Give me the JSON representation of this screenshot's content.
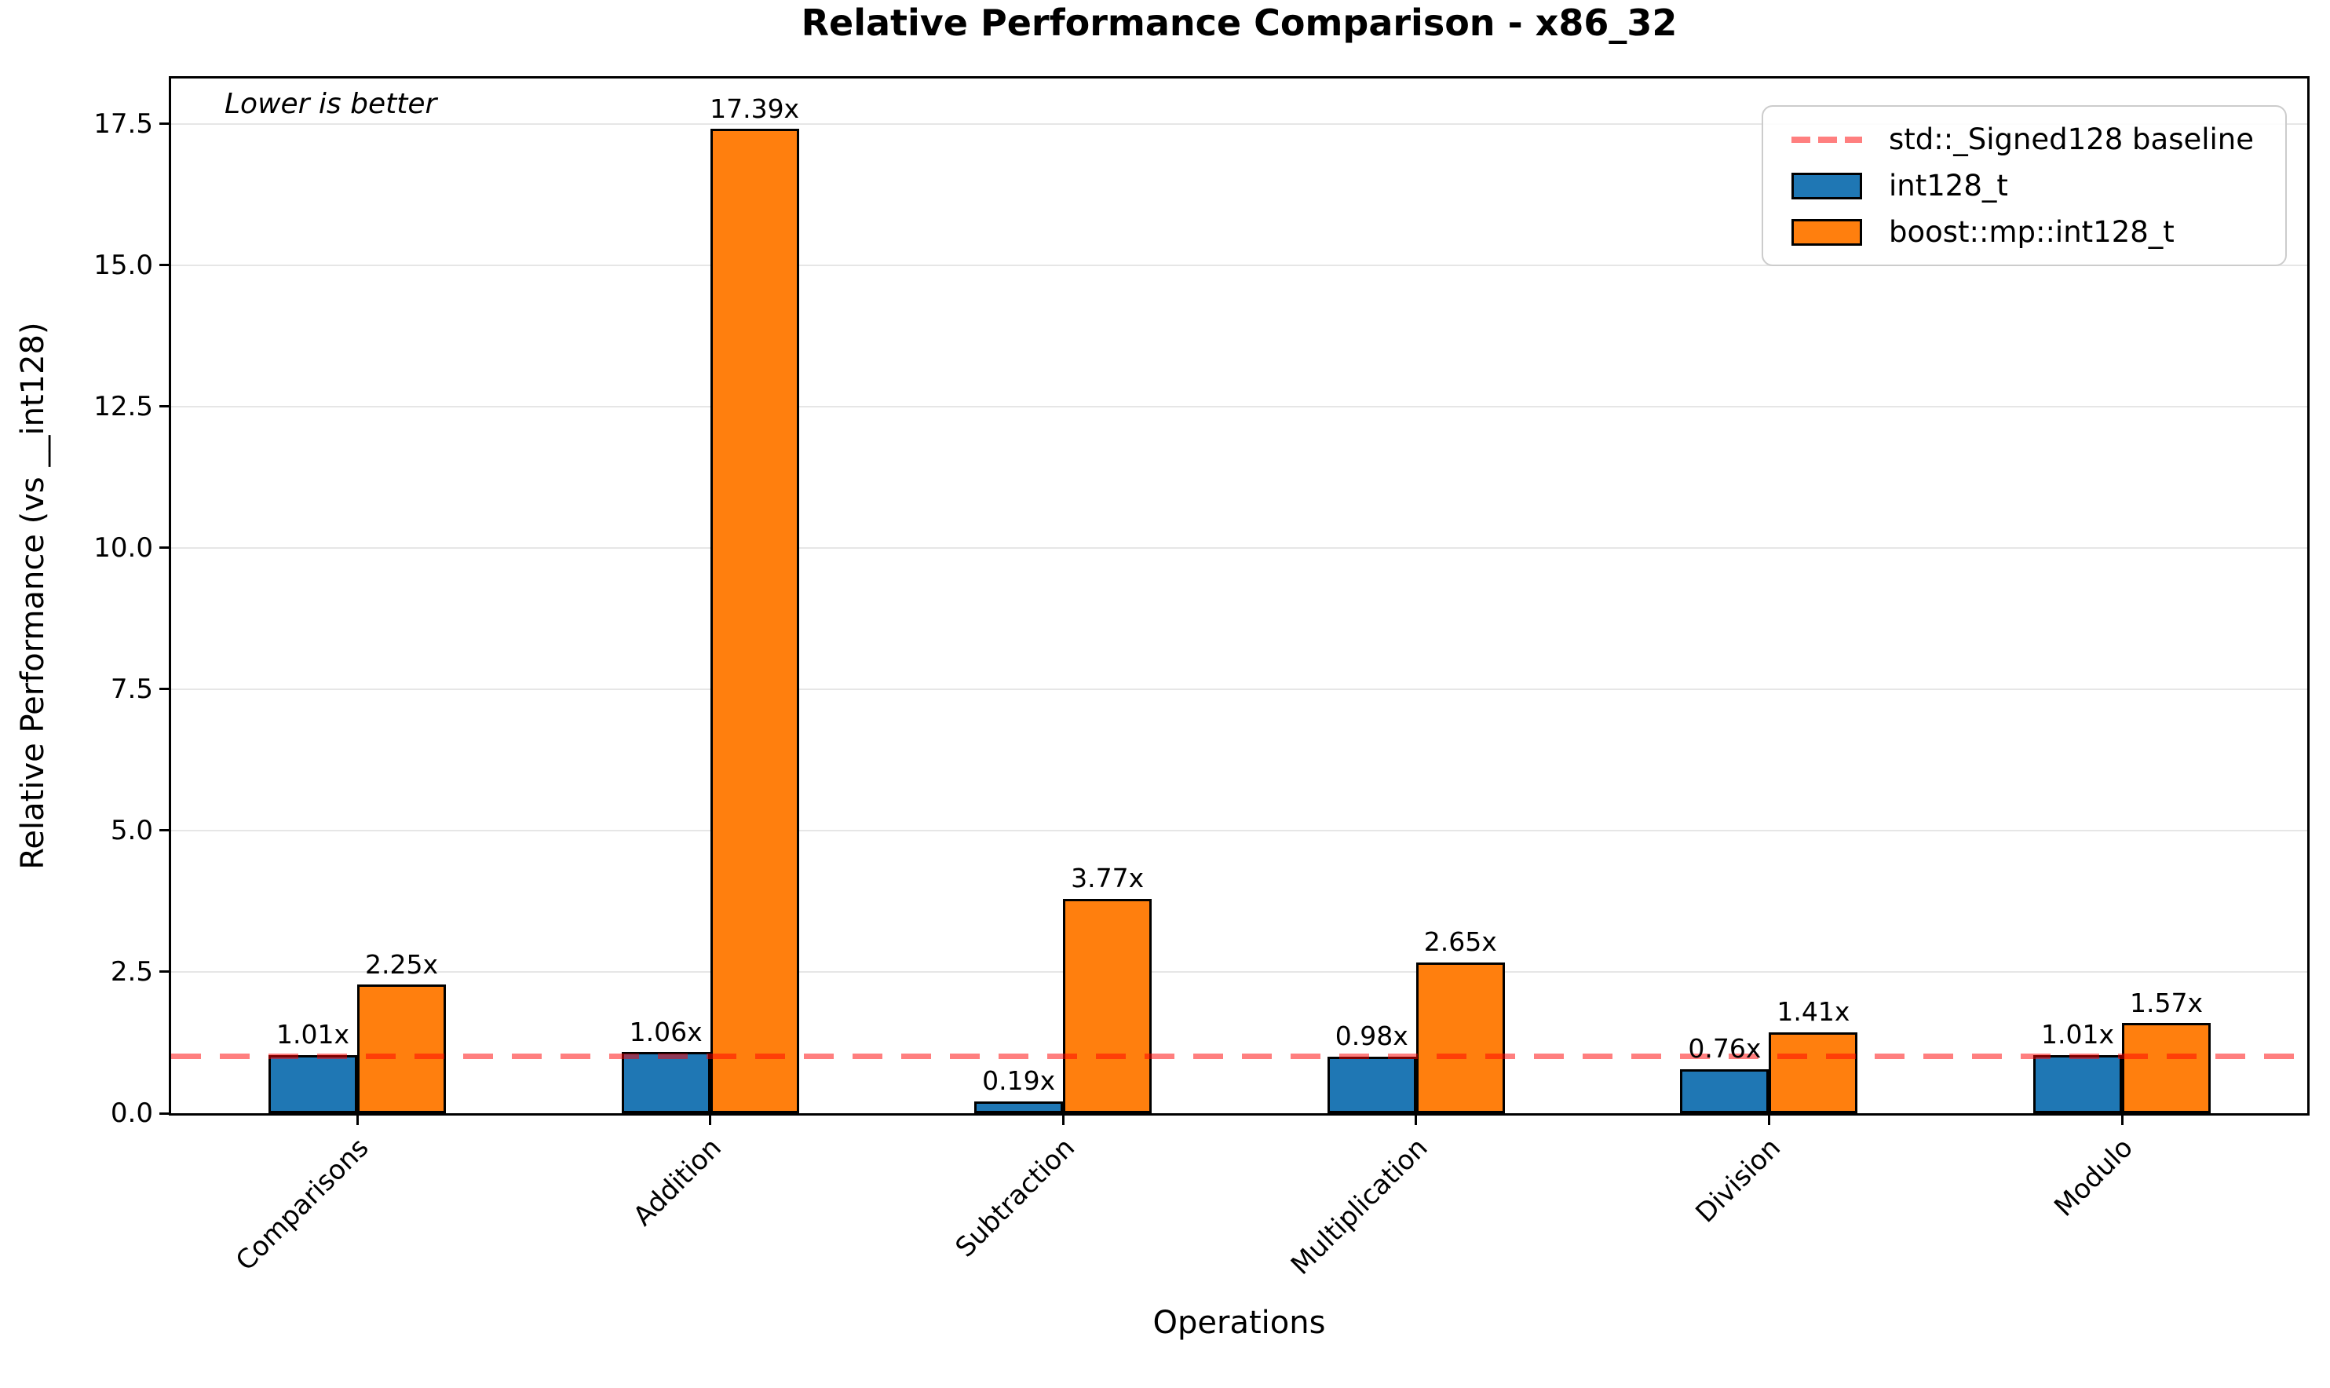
{
  "chart_data": {
    "type": "bar",
    "title": "Relative Performance Comparison - x86_32",
    "xlabel": "Operations",
    "ylabel": "Relative Performance (vs __int128)",
    "note": "Lower is better",
    "categories": [
      "Comparisons",
      "Addition",
      "Subtraction",
      "Multiplication",
      "Division",
      "Modulo"
    ],
    "series": [
      {
        "name": "int128_t",
        "color": "#1f77b4",
        "values": [
          1.01,
          1.06,
          0.19,
          0.98,
          0.76,
          1.01
        ],
        "labels": [
          "1.01x",
          "1.06x",
          "0.19x",
          "0.98x",
          "0.76x",
          "1.01x"
        ]
      },
      {
        "name": "boost::mp::int128_t",
        "color": "#ff7f0e",
        "values": [
          2.25,
          17.39,
          3.77,
          2.65,
          1.41,
          1.57
        ],
        "labels": [
          "2.25x",
          "17.39x",
          "3.77x",
          "2.65x",
          "1.41x",
          "1.57x"
        ]
      }
    ],
    "baseline": {
      "value": 1.0,
      "label": "std::_Signed128 baseline",
      "color": "rgba(255,0,0,0.5)"
    },
    "yticks": [
      0.0,
      2.5,
      5.0,
      7.5,
      10.0,
      12.5,
      15.0,
      17.5
    ],
    "ytick_labels": [
      "0.0",
      "2.5",
      "5.0",
      "7.5",
      "10.0",
      "12.5",
      "15.0",
      "17.5"
    ],
    "ylim": [
      0,
      18.3
    ],
    "grid": true,
    "legend_position": "upper right",
    "bar_edge_color": "#000000",
    "grid_color": "#e6e6e6"
  }
}
